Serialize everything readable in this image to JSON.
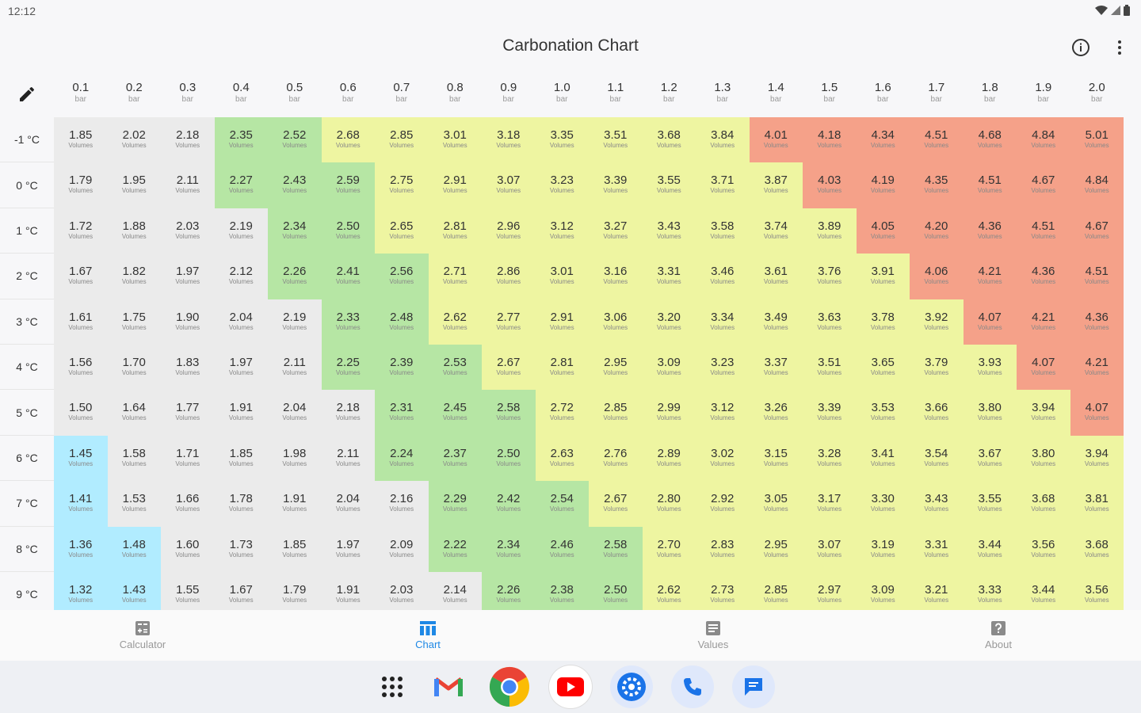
{
  "status": {
    "time": "12:12"
  },
  "app": {
    "title": "Carbonation Chart"
  },
  "icons": {
    "edit": "pencil-icon",
    "info": "info-icon",
    "more": "more-vert-icon"
  },
  "colors": {
    "blue": "#b1ecff",
    "grey": "#ebebeb",
    "green": "#b6e6a4",
    "yellow": "#eef5a1",
    "red": "#f5a189",
    "accent": "#1e88e5"
  },
  "chart": {
    "pressure_unit": "bar",
    "cell_unit": "Volumes",
    "pressures": [
      "0.1",
      "0.2",
      "0.3",
      "0.4",
      "0.5",
      "0.6",
      "0.7",
      "0.8",
      "0.9",
      "1.0",
      "1.1",
      "1.2",
      "1.3",
      "1.4",
      "1.5",
      "1.6",
      "1.7",
      "1.8",
      "1.9",
      "2.0"
    ],
    "rows": [
      {
        "temp": "-1 °C",
        "values": [
          "1.85",
          "2.02",
          "2.18",
          "2.35",
          "2.52",
          "2.68",
          "2.85",
          "3.01",
          "3.18",
          "3.35",
          "3.51",
          "3.68",
          "3.84",
          "4.01",
          "4.18",
          "4.34",
          "4.51",
          "4.68",
          "4.84",
          "5.01"
        ],
        "levels": [
          "grey",
          "grey",
          "grey",
          "green",
          "green",
          "yellow",
          "yellow",
          "yellow",
          "yellow",
          "yellow",
          "yellow",
          "yellow",
          "yellow",
          "red",
          "red",
          "red",
          "red",
          "red",
          "red",
          "red"
        ]
      },
      {
        "temp": "0 °C",
        "values": [
          "1.79",
          "1.95",
          "2.11",
          "2.27",
          "2.43",
          "2.59",
          "2.75",
          "2.91",
          "3.07",
          "3.23",
          "3.39",
          "3.55",
          "3.71",
          "3.87",
          "4.03",
          "4.19",
          "4.35",
          "4.51",
          "4.67",
          "4.84"
        ],
        "levels": [
          "grey",
          "grey",
          "grey",
          "green",
          "green",
          "green",
          "yellow",
          "yellow",
          "yellow",
          "yellow",
          "yellow",
          "yellow",
          "yellow",
          "yellow",
          "red",
          "red",
          "red",
          "red",
          "red",
          "red"
        ]
      },
      {
        "temp": "1 °C",
        "values": [
          "1.72",
          "1.88",
          "2.03",
          "2.19",
          "2.34",
          "2.50",
          "2.65",
          "2.81",
          "2.96",
          "3.12",
          "3.27",
          "3.43",
          "3.58",
          "3.74",
          "3.89",
          "4.05",
          "4.20",
          "4.36",
          "4.51",
          "4.67"
        ],
        "levels": [
          "grey",
          "grey",
          "grey",
          "grey",
          "green",
          "green",
          "yellow",
          "yellow",
          "yellow",
          "yellow",
          "yellow",
          "yellow",
          "yellow",
          "yellow",
          "yellow",
          "red",
          "red",
          "red",
          "red",
          "red"
        ]
      },
      {
        "temp": "2 °C",
        "values": [
          "1.67",
          "1.82",
          "1.97",
          "2.12",
          "2.26",
          "2.41",
          "2.56",
          "2.71",
          "2.86",
          "3.01",
          "3.16",
          "3.31",
          "3.46",
          "3.61",
          "3.76",
          "3.91",
          "4.06",
          "4.21",
          "4.36",
          "4.51"
        ],
        "levels": [
          "grey",
          "grey",
          "grey",
          "grey",
          "green",
          "green",
          "green",
          "yellow",
          "yellow",
          "yellow",
          "yellow",
          "yellow",
          "yellow",
          "yellow",
          "yellow",
          "yellow",
          "red",
          "red",
          "red",
          "red"
        ]
      },
      {
        "temp": "3 °C",
        "values": [
          "1.61",
          "1.75",
          "1.90",
          "2.04",
          "2.19",
          "2.33",
          "2.48",
          "2.62",
          "2.77",
          "2.91",
          "3.06",
          "3.20",
          "3.34",
          "3.49",
          "3.63",
          "3.78",
          "3.92",
          "4.07",
          "4.21",
          "4.36"
        ],
        "levels": [
          "grey",
          "grey",
          "grey",
          "grey",
          "grey",
          "green",
          "green",
          "yellow",
          "yellow",
          "yellow",
          "yellow",
          "yellow",
          "yellow",
          "yellow",
          "yellow",
          "yellow",
          "yellow",
          "red",
          "red",
          "red"
        ]
      },
      {
        "temp": "4 °C",
        "values": [
          "1.56",
          "1.70",
          "1.83",
          "1.97",
          "2.11",
          "2.25",
          "2.39",
          "2.53",
          "2.67",
          "2.81",
          "2.95",
          "3.09",
          "3.23",
          "3.37",
          "3.51",
          "3.65",
          "3.79",
          "3.93",
          "4.07",
          "4.21"
        ],
        "levels": [
          "grey",
          "grey",
          "grey",
          "grey",
          "grey",
          "green",
          "green",
          "green",
          "yellow",
          "yellow",
          "yellow",
          "yellow",
          "yellow",
          "yellow",
          "yellow",
          "yellow",
          "yellow",
          "yellow",
          "red",
          "red"
        ]
      },
      {
        "temp": "5 °C",
        "values": [
          "1.50",
          "1.64",
          "1.77",
          "1.91",
          "2.04",
          "2.18",
          "2.31",
          "2.45",
          "2.58",
          "2.72",
          "2.85",
          "2.99",
          "3.12",
          "3.26",
          "3.39",
          "3.53",
          "3.66",
          "3.80",
          "3.94",
          "4.07"
        ],
        "levels": [
          "grey",
          "grey",
          "grey",
          "grey",
          "grey",
          "grey",
          "green",
          "green",
          "green",
          "yellow",
          "yellow",
          "yellow",
          "yellow",
          "yellow",
          "yellow",
          "yellow",
          "yellow",
          "yellow",
          "yellow",
          "red"
        ]
      },
      {
        "temp": "6 °C",
        "values": [
          "1.45",
          "1.58",
          "1.71",
          "1.85",
          "1.98",
          "2.11",
          "2.24",
          "2.37",
          "2.50",
          "2.63",
          "2.76",
          "2.89",
          "3.02",
          "3.15",
          "3.28",
          "3.41",
          "3.54",
          "3.67",
          "3.80",
          "3.94"
        ],
        "levels": [
          "blue",
          "grey",
          "grey",
          "grey",
          "grey",
          "grey",
          "green",
          "green",
          "green",
          "yellow",
          "yellow",
          "yellow",
          "yellow",
          "yellow",
          "yellow",
          "yellow",
          "yellow",
          "yellow",
          "yellow",
          "yellow"
        ]
      },
      {
        "temp": "7 °C",
        "values": [
          "1.41",
          "1.53",
          "1.66",
          "1.78",
          "1.91",
          "2.04",
          "2.16",
          "2.29",
          "2.42",
          "2.54",
          "2.67",
          "2.80",
          "2.92",
          "3.05",
          "3.17",
          "3.30",
          "3.43",
          "3.55",
          "3.68",
          "3.81"
        ],
        "levels": [
          "blue",
          "grey",
          "grey",
          "grey",
          "grey",
          "grey",
          "grey",
          "green",
          "green",
          "green",
          "yellow",
          "yellow",
          "yellow",
          "yellow",
          "yellow",
          "yellow",
          "yellow",
          "yellow",
          "yellow",
          "yellow"
        ]
      },
      {
        "temp": "8 °C",
        "values": [
          "1.36",
          "1.48",
          "1.60",
          "1.73",
          "1.85",
          "1.97",
          "2.09",
          "2.22",
          "2.34",
          "2.46",
          "2.58",
          "2.70",
          "2.83",
          "2.95",
          "3.07",
          "3.19",
          "3.31",
          "3.44",
          "3.56",
          "3.68"
        ],
        "levels": [
          "blue",
          "blue",
          "grey",
          "grey",
          "grey",
          "grey",
          "grey",
          "green",
          "green",
          "green",
          "green",
          "yellow",
          "yellow",
          "yellow",
          "yellow",
          "yellow",
          "yellow",
          "yellow",
          "yellow",
          "yellow"
        ]
      },
      {
        "temp": "9 °C",
        "values": [
          "1.32",
          "1.43",
          "1.55",
          "1.67",
          "1.79",
          "1.91",
          "2.03",
          "2.14",
          "2.26",
          "2.38",
          "2.50",
          "2.62",
          "2.73",
          "2.85",
          "2.97",
          "3.09",
          "3.21",
          "3.33",
          "3.44",
          "3.56"
        ],
        "levels": [
          "blue",
          "blue",
          "grey",
          "grey",
          "grey",
          "grey",
          "grey",
          "grey",
          "green",
          "green",
          "green",
          "yellow",
          "yellow",
          "yellow",
          "yellow",
          "yellow",
          "yellow",
          "yellow",
          "yellow",
          "yellow"
        ]
      }
    ]
  },
  "nav": {
    "calculator": "Calculator",
    "chart": "Chart",
    "values": "Values",
    "about": "About"
  },
  "dock": {
    "apps": [
      "app-drawer-icon",
      "gmail-icon",
      "chrome-icon",
      "youtube-icon",
      "settings-icon",
      "phone-icon",
      "messages-icon"
    ]
  }
}
